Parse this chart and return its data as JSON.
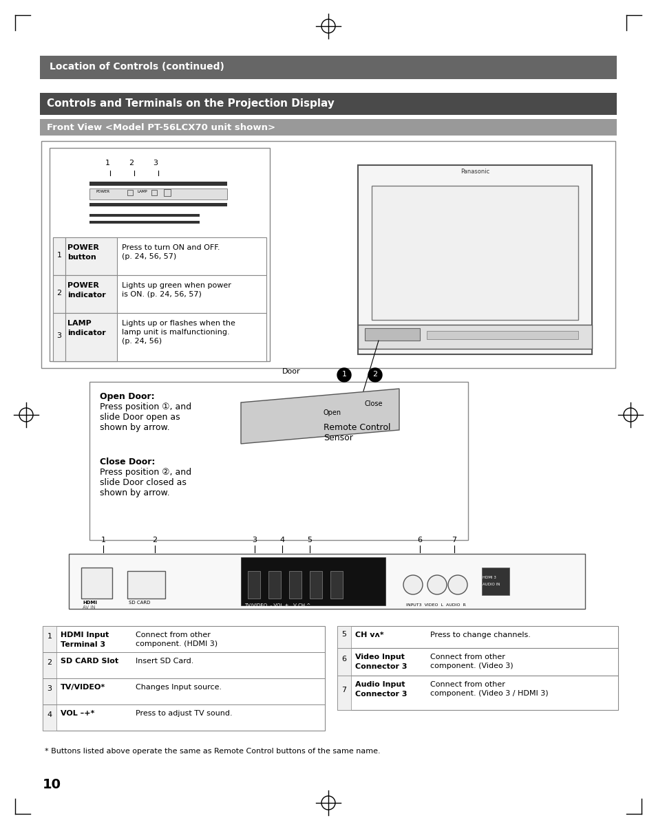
{
  "page_bg": "#ffffff",
  "header1_bg": "#666666",
  "header1_text": "Location of Controls (continued)",
  "header1_text_color": "#ffffff",
  "header2_bg": "#666666",
  "header2_text": "Controls and Terminals on the Projection Display",
  "header2_text_color": "#ffffff",
  "header3_bg": "#999999",
  "header3_text": "Front View <Model PT-56LCX70 unit shown>",
  "header3_text_color": "#ffffff",
  "table1_rows": [
    [
      "1",
      "POWER\nbutton",
      "Press to turn ON and OFF.\n(p. 24, 56, 57)"
    ],
    [
      "2",
      "POWER\nindicator",
      "Lights up green when power\nis ON. (p. 24, 56, 57)"
    ],
    [
      "3",
      "LAMP\nindicator",
      "Lights up or flashes when the\nlamp unit is malfunctioning.\n(p. 24, 56)"
    ]
  ],
  "open_door_title": "Open Door:",
  "open_door_text": "Press position ①, and\nslide Door open as\nshown by arrow.",
  "close_door_title": "Close Door:",
  "close_door_text": "Press position ②, and\nslide Door closed as\nshown by arrow.",
  "table2_left": [
    [
      "1",
      "HDMI Input\nTerminal 3",
      "Connect from other\ncomponent. (HDMI 3)"
    ],
    [
      "2",
      "SD CARD Slot",
      "Insert SD Card."
    ],
    [
      "3",
      "TV/VIDEO*",
      "Changes Input source."
    ],
    [
      "4",
      "VOL –+*",
      "Press to adjust TV sound."
    ]
  ],
  "table2_right": [
    [
      "5",
      "CH vʌ*",
      "Press to change channels."
    ],
    [
      "6",
      "Video Input\nConnector 3",
      "Connect from other\ncomponent. (Video 3)"
    ],
    [
      "7",
      "Audio Input\nConnector 3",
      "Connect from other\ncomponent. (Video 3 / HDMI 3)"
    ]
  ],
  "footnote": "* Buttons listed above operate the same as Remote Control buttons of the same name.",
  "page_number": "10",
  "remote_sensor_label": "Remote Control\nSensor",
  "corner_marks_color": "#000000",
  "table_border_color": "#000000",
  "label_numbers": [
    "1",
    "2",
    "3",
    "4",
    "5",
    "6",
    "7"
  ]
}
